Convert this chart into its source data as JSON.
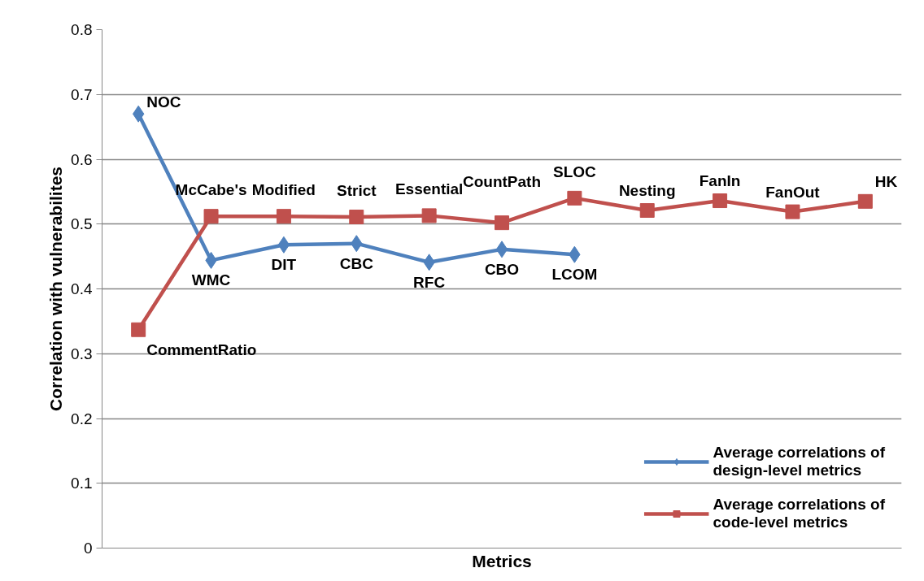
{
  "chart_data": {
    "type": "line",
    "xlabel": "Metrics",
    "ylabel": "Correlation with vulnerabilites",
    "categories": [
      null,
      null,
      null,
      null,
      null,
      null,
      null,
      null,
      null,
      null,
      null
    ],
    "ylim": [
      0,
      0.8
    ],
    "yticks": [
      0,
      0.1,
      0.2,
      0.3,
      0.4,
      0.5,
      0.6,
      0.7,
      0.8
    ],
    "tick_labels": "y",
    "grid": "y",
    "legend": "bottom right",
    "series": [
      {
        "name": "Average correlations of design-level metrics",
        "color": "#4f81bd",
        "marker": "diamond",
        "values": [
          0.67,
          0.444,
          0.468,
          0.47,
          0.441,
          0.461,
          0.453,
          null,
          null,
          null,
          null
        ],
        "value_labels": [
          "NOC",
          "WMC",
          "DIT",
          "CBC",
          "RFC",
          "CBO",
          "LCOM",
          null,
          null,
          null,
          null
        ]
      },
      {
        "name": "Average correlations of code-level metrics",
        "color": "#c0504d",
        "marker": "square",
        "values": [
          0.337,
          0.512,
          0.512,
          0.511,
          0.513,
          0.502,
          0.54,
          0.521,
          0.536,
          0.519,
          0.535
        ],
        "value_labels": [
          "CommentRatio",
          "McCabe's",
          "Modified",
          "Strict",
          "Essential",
          "CountPath",
          "SLOC",
          "Nesting",
          "FanIn",
          "FanOut",
          "HK"
        ]
      }
    ]
  }
}
